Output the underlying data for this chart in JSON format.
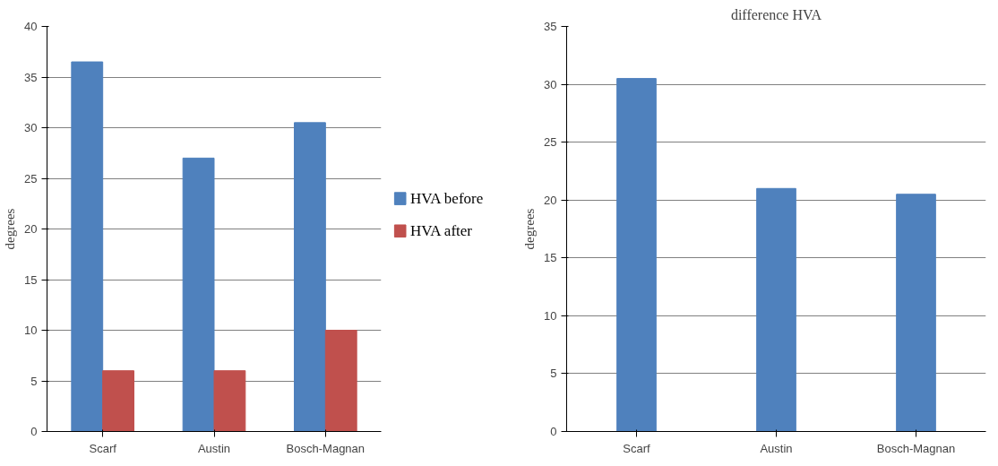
{
  "chart_data": [
    {
      "type": "bar",
      "ylabel": "degrees",
      "categories": [
        "Scarf",
        "Austin",
        "Bosch-Magnan"
      ],
      "series": [
        {
          "name": "HVA  before",
          "color": "#4f81bd",
          "values": [
            36.5,
            27,
            30.5
          ]
        },
        {
          "name": "HVA  after",
          "color": "#c0504d",
          "values": [
            6,
            6,
            10
          ]
        }
      ],
      "ylim": [
        0,
        40
      ],
      "yticks": [
        0,
        5,
        10,
        15,
        20,
        25,
        30,
        35,
        40
      ],
      "grid": "y",
      "legend": "right"
    },
    {
      "type": "bar",
      "title": "difference HVA",
      "ylabel": "degrees",
      "categories": [
        "Scarf",
        "Austin",
        "Bosch-Magnan"
      ],
      "series": [
        {
          "color": "#4f81bd",
          "values": [
            30.5,
            21,
            20.5
          ]
        }
      ],
      "ylim": [
        0,
        35
      ],
      "yticks": [
        0,
        5,
        10,
        15,
        20,
        25,
        30,
        35
      ],
      "grid": "y",
      "legend": false
    }
  ]
}
